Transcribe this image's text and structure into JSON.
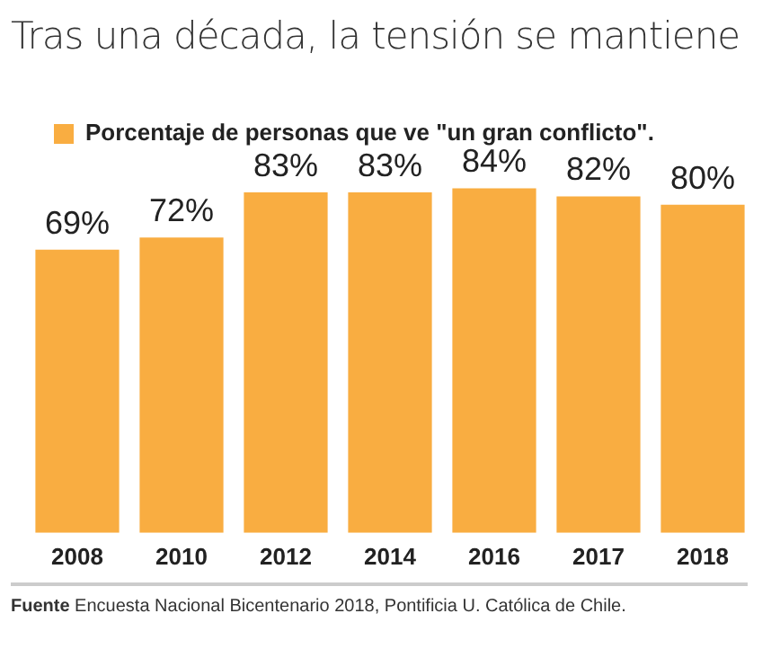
{
  "chart_data": {
    "type": "bar",
    "title": "Tras una década, la tensión se mantiene",
    "categories": [
      "2008",
      "2010",
      "2012",
      "2014",
      "2016",
      "2017",
      "2018"
    ],
    "series": [
      {
        "name": "Porcentaje de personas que ve \"un gran conflicto\".",
        "color": "#f9ad41",
        "values": [
          69,
          72,
          83,
          83,
          84,
          82,
          80
        ],
        "value_labels": [
          "69%",
          "72%",
          "83%",
          "83%",
          "84%",
          "82%",
          "80%"
        ]
      }
    ],
    "legend": "top left",
    "grid": false,
    "tick_labels": "x",
    "annotations": [
      "Fuente Encuesta Nacional Bicentenario 2018, Pontificia U. Católica de Chile."
    ]
  }
}
